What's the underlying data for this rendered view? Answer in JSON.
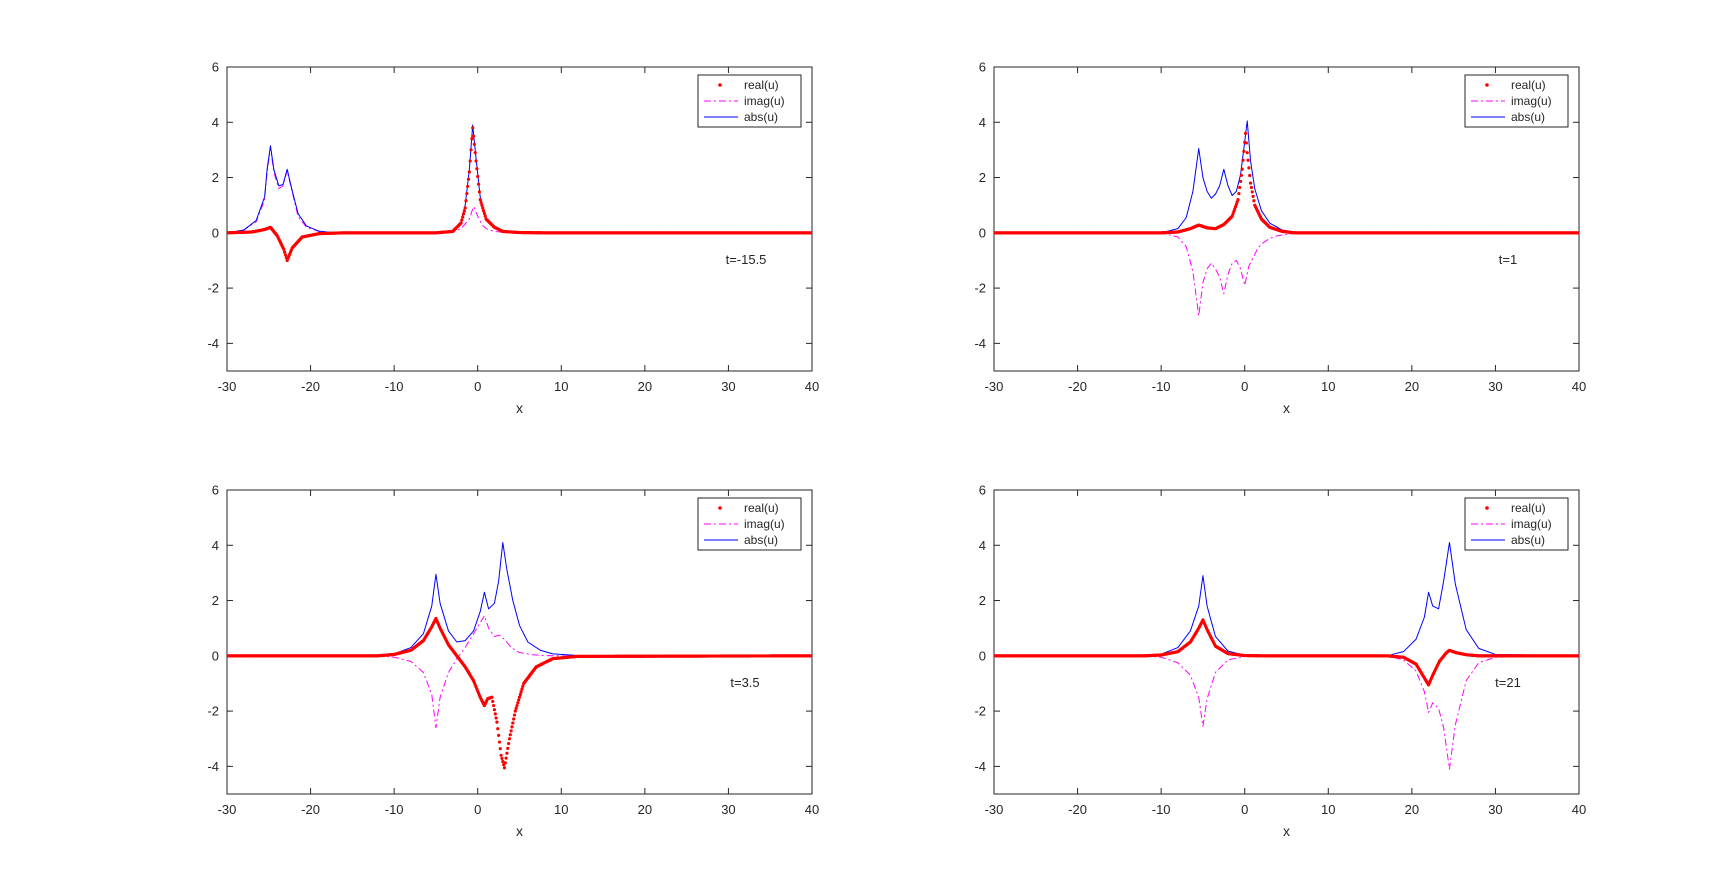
{
  "figure": {
    "legend_labels": [
      "real(u)",
      "imag(u)",
      "abs(u)"
    ],
    "colors": {
      "real": "#ff0000",
      "imag": "#ff00ff",
      "abs": "#0000ff",
      "axes": "#262626",
      "background": "#ffffff"
    }
  },
  "chart_data": [
    {
      "type": "line",
      "title": "",
      "xlabel": "x",
      "ylabel": "",
      "xlim": [
        -30,
        40
      ],
      "ylim": [
        -5,
        6
      ],
      "xticks": [
        -30,
        -20,
        -10,
        0,
        10,
        20,
        30,
        40
      ],
      "yticks": [
        -4,
        -2,
        0,
        2,
        4,
        6
      ],
      "grid": false,
      "legend_position": "top-right",
      "annotation": "t=-15.5",
      "series": [
        {
          "name": "real(u)",
          "style": "dots",
          "color": "#ff0000",
          "x": [
            -30,
            -27,
            -25.5,
            -24.8,
            -24,
            -23.2,
            -22.8,
            -22.2,
            -21,
            -19,
            -16,
            -5,
            -3,
            -2,
            -1.5,
            -1,
            -0.6,
            -0.2,
            0.3,
            1,
            2,
            3,
            5,
            8,
            40
          ],
          "y": [
            0,
            0.03,
            0.12,
            0.2,
            -0.1,
            -0.6,
            -1.0,
            -0.55,
            -0.15,
            -0.03,
            0,
            0,
            0.05,
            0.35,
            0.9,
            2.2,
            3.8,
            2.6,
            1.2,
            0.5,
            0.2,
            0.05,
            0.01,
            0,
            0
          ]
        },
        {
          "name": "imag(u)",
          "style": "dashdot",
          "color": "#ff00ff",
          "x": [
            -30,
            -28,
            -26.5,
            -25.5,
            -25.2,
            -24.8,
            -24.4,
            -23.8,
            -23.3,
            -22.8,
            -22.3,
            -21.5,
            -20.5,
            -19,
            -17,
            -5,
            -3,
            -2,
            -1,
            -0.5,
            0,
            0.5,
            1,
            2,
            3,
            5,
            8,
            40
          ],
          "y": [
            0,
            0.1,
            0.4,
            1.2,
            2.2,
            3.1,
            2.2,
            1.6,
            1.7,
            2.25,
            1.6,
            0.6,
            0.2,
            0.05,
            0,
            0,
            0.03,
            0.15,
            0.5,
            0.95,
            0.6,
            0.3,
            0.15,
            0.05,
            0.02,
            0,
            0,
            0
          ]
        },
        {
          "name": "abs(u)",
          "style": "solid",
          "color": "#0000ff",
          "x": [
            -30,
            -28,
            -26.5,
            -25.5,
            -25.2,
            -24.8,
            -24.4,
            -23.8,
            -23.3,
            -22.8,
            -22.3,
            -21.5,
            -20.5,
            -19,
            -17,
            -5,
            -3,
            -2,
            -1.5,
            -1,
            -0.6,
            -0.2,
            0.3,
            1,
            2,
            3,
            5,
            8,
            40
          ],
          "y": [
            0,
            0.1,
            0.45,
            1.3,
            2.3,
            3.15,
            2.3,
            1.7,
            1.75,
            2.3,
            1.65,
            0.7,
            0.25,
            0.06,
            0,
            0,
            0.06,
            0.4,
            1.0,
            2.3,
            3.9,
            2.7,
            1.3,
            0.55,
            0.22,
            0.07,
            0.01,
            0,
            0
          ]
        }
      ]
    },
    {
      "type": "line",
      "title": "",
      "xlabel": "x",
      "ylabel": "",
      "xlim": [
        -30,
        40
      ],
      "ylim": [
        -5,
        6
      ],
      "xticks": [
        -30,
        -20,
        -10,
        0,
        10,
        20,
        30,
        40
      ],
      "yticks": [
        -4,
        -2,
        0,
        2,
        4,
        6
      ],
      "grid": false,
      "legend_position": "top-right",
      "annotation": "t=1",
      "series": [
        {
          "name": "real(u)",
          "style": "dots",
          "color": "#ff0000",
          "x": [
            -30,
            -10,
            -8,
            -6.5,
            -5.5,
            -4.5,
            -3.5,
            -2.5,
            -1.5,
            -0.8,
            -0.3,
            0.1,
            0.3,
            0.7,
            1.2,
            2,
            3,
            4.5,
            6,
            40
          ],
          "y": [
            0,
            0,
            0.03,
            0.15,
            0.28,
            0.18,
            0.15,
            0.3,
            0.6,
            1.2,
            2.3,
            3.6,
            2.9,
            1.8,
            1.0,
            0.5,
            0.2,
            0.05,
            0,
            0
          ]
        },
        {
          "name": "imag(u)",
          "style": "dashdot",
          "color": "#ff00ff",
          "x": [
            -30,
            -10,
            -8,
            -7,
            -6.2,
            -5.5,
            -5,
            -4.5,
            -4,
            -3.5,
            -3,
            -2.5,
            -2,
            -1.5,
            -1,
            -0.5,
            0,
            0.5,
            1,
            1.5,
            2,
            3,
            4,
            6,
            40
          ],
          "y": [
            0,
            0,
            -0.15,
            -0.5,
            -1.4,
            -3.0,
            -1.8,
            -1.3,
            -1.1,
            -1.3,
            -1.6,
            -2.2,
            -1.5,
            -1.1,
            -1.0,
            -1.3,
            -1.9,
            -1.2,
            -0.9,
            -0.6,
            -0.4,
            -0.2,
            -0.1,
            -0.02,
            0
          ]
        },
        {
          "name": "abs(u)",
          "style": "solid",
          "color": "#0000ff",
          "x": [
            -30,
            -10,
            -8,
            -7,
            -6.2,
            -5.5,
            -5,
            -4.5,
            -4,
            -3.5,
            -3,
            -2.5,
            -2,
            -1.5,
            -1,
            -0.5,
            0,
            0.3,
            0.7,
            1.2,
            2,
            3,
            4.5,
            6,
            40
          ],
          "y": [
            0,
            0,
            0.15,
            0.55,
            1.5,
            3.05,
            2.0,
            1.5,
            1.25,
            1.4,
            1.7,
            2.3,
            1.7,
            1.35,
            1.5,
            2.1,
            3.3,
            4.05,
            2.6,
            1.6,
            0.8,
            0.35,
            0.1,
            0.02,
            0
          ]
        }
      ]
    },
    {
      "type": "line",
      "title": "",
      "xlabel": "x",
      "ylabel": "",
      "xlim": [
        -30,
        40
      ],
      "ylim": [
        -5,
        6
      ],
      "xticks": [
        -30,
        -20,
        -10,
        0,
        10,
        20,
        30,
        40
      ],
      "yticks": [
        -4,
        -2,
        0,
        2,
        4,
        6
      ],
      "grid": false,
      "legend_position": "top-right",
      "annotation": "t=3.5",
      "series": [
        {
          "name": "real(u)",
          "style": "dots",
          "color": "#ff0000",
          "x": [
            -30,
            -12,
            -10,
            -8,
            -6.5,
            -5.5,
            -5,
            -4.5,
            -3.5,
            -2.5,
            -1.5,
            -0.5,
            0.3,
            0.8,
            1.2,
            1.7,
            2.3,
            2.8,
            3.2,
            3.8,
            4.5,
            5.5,
            7,
            9,
            12,
            40
          ],
          "y": [
            0,
            0,
            0.05,
            0.2,
            0.55,
            1.05,
            1.35,
            1.0,
            0.4,
            0.0,
            -0.4,
            -0.9,
            -1.5,
            -1.8,
            -1.55,
            -1.5,
            -2.4,
            -3.6,
            -4.05,
            -3.0,
            -2.0,
            -1.0,
            -0.4,
            -0.1,
            -0.02,
            0
          ]
        },
        {
          "name": "imag(u)",
          "style": "dashdot",
          "color": "#ff00ff",
          "x": [
            -30,
            -12,
            -10,
            -8,
            -6.5,
            -5.5,
            -5,
            -4.5,
            -3.5,
            -2.5,
            -1.5,
            -0.5,
            0.3,
            0.8,
            1.3,
            2,
            2.6,
            3.2,
            4,
            5,
            6.5,
            8,
            10,
            40
          ],
          "y": [
            0,
            0,
            -0.05,
            -0.2,
            -0.6,
            -1.4,
            -2.6,
            -1.5,
            -0.6,
            -0.1,
            0.3,
            0.8,
            1.2,
            1.45,
            1.0,
            0.7,
            0.75,
            0.6,
            0.3,
            0.12,
            0.04,
            0.01,
            0,
            0
          ]
        },
        {
          "name": "abs(u)",
          "style": "solid",
          "color": "#0000ff",
          "x": [
            -30,
            -12,
            -10,
            -8,
            -6.5,
            -5.5,
            -5,
            -4.5,
            -3.5,
            -2.5,
            -1.5,
            -0.5,
            0.3,
            0.8,
            1.3,
            2,
            2.5,
            3,
            3.5,
            4.2,
            5,
            6,
            7.5,
            9,
            12,
            40
          ],
          "y": [
            0,
            0,
            0.07,
            0.3,
            0.8,
            1.8,
            2.95,
            1.9,
            0.9,
            0.5,
            0.55,
            0.9,
            1.6,
            2.3,
            1.7,
            1.9,
            2.7,
            4.1,
            3.1,
            2.0,
            1.1,
            0.5,
            0.2,
            0.07,
            0.01,
            0
          ]
        }
      ]
    },
    {
      "type": "line",
      "title": "",
      "xlabel": "x",
      "ylabel": "",
      "xlim": [
        -30,
        40
      ],
      "ylim": [
        -5,
        6
      ],
      "xticks": [
        -30,
        -20,
        -10,
        0,
        10,
        20,
        30,
        40
      ],
      "yticks": [
        -4,
        -2,
        0,
        2,
        4,
        6
      ],
      "grid": false,
      "legend_position": "top-right",
      "annotation": "t=21",
      "series": [
        {
          "name": "real(u)",
          "style": "dots",
          "color": "#ff0000",
          "x": [
            -30,
            -12,
            -10,
            -8,
            -6.5,
            -5.5,
            -5,
            -4.5,
            -3.5,
            -2,
            0,
            2,
            17,
            19,
            20.5,
            21.5,
            22,
            22.5,
            23.3,
            24.1,
            24.5,
            25.2,
            26.5,
            28,
            40
          ],
          "y": [
            0,
            0,
            0.03,
            0.15,
            0.5,
            1.0,
            1.3,
            0.95,
            0.35,
            0.08,
            0.01,
            0,
            0,
            -0.05,
            -0.3,
            -0.8,
            -1.05,
            -0.7,
            -0.2,
            0.1,
            0.2,
            0.12,
            0.04,
            0,
            0
          ]
        },
        {
          "name": "imag(u)",
          "style": "dashdot",
          "color": "#ff00ff",
          "x": [
            -30,
            -12,
            -10,
            -8,
            -6.5,
            -5.5,
            -5,
            -4.5,
            -3.5,
            -2,
            0,
            2,
            17,
            19,
            20.5,
            21.5,
            22,
            22.5,
            23.2,
            23.8,
            24.5,
            25.2,
            26.5,
            28,
            30,
            40
          ],
          "y": [
            0,
            0,
            -0.05,
            -0.25,
            -0.7,
            -1.5,
            -2.55,
            -1.55,
            -0.6,
            -0.15,
            -0.02,
            0,
            0,
            -0.15,
            -0.55,
            -1.3,
            -2.05,
            -1.7,
            -1.9,
            -2.6,
            -4.1,
            -2.5,
            -0.9,
            -0.25,
            -0.05,
            0
          ]
        },
        {
          "name": "abs(u)",
          "style": "solid",
          "color": "#0000ff",
          "x": [
            -30,
            -12,
            -10,
            -8,
            -6.5,
            -5.5,
            -5,
            -4.5,
            -3.5,
            -2,
            0,
            2,
            17,
            19,
            20.5,
            21.5,
            22,
            22.5,
            23.2,
            23.8,
            24.5,
            25.2,
            26.5,
            28,
            30,
            40
          ],
          "y": [
            0,
            0,
            0.06,
            0.3,
            0.9,
            1.8,
            2.9,
            1.8,
            0.7,
            0.17,
            0.02,
            0,
            0,
            0.15,
            0.6,
            1.4,
            2.3,
            1.8,
            1.7,
            2.7,
            4.1,
            2.6,
            0.95,
            0.27,
            0.05,
            0
          ]
        }
      ]
    }
  ]
}
